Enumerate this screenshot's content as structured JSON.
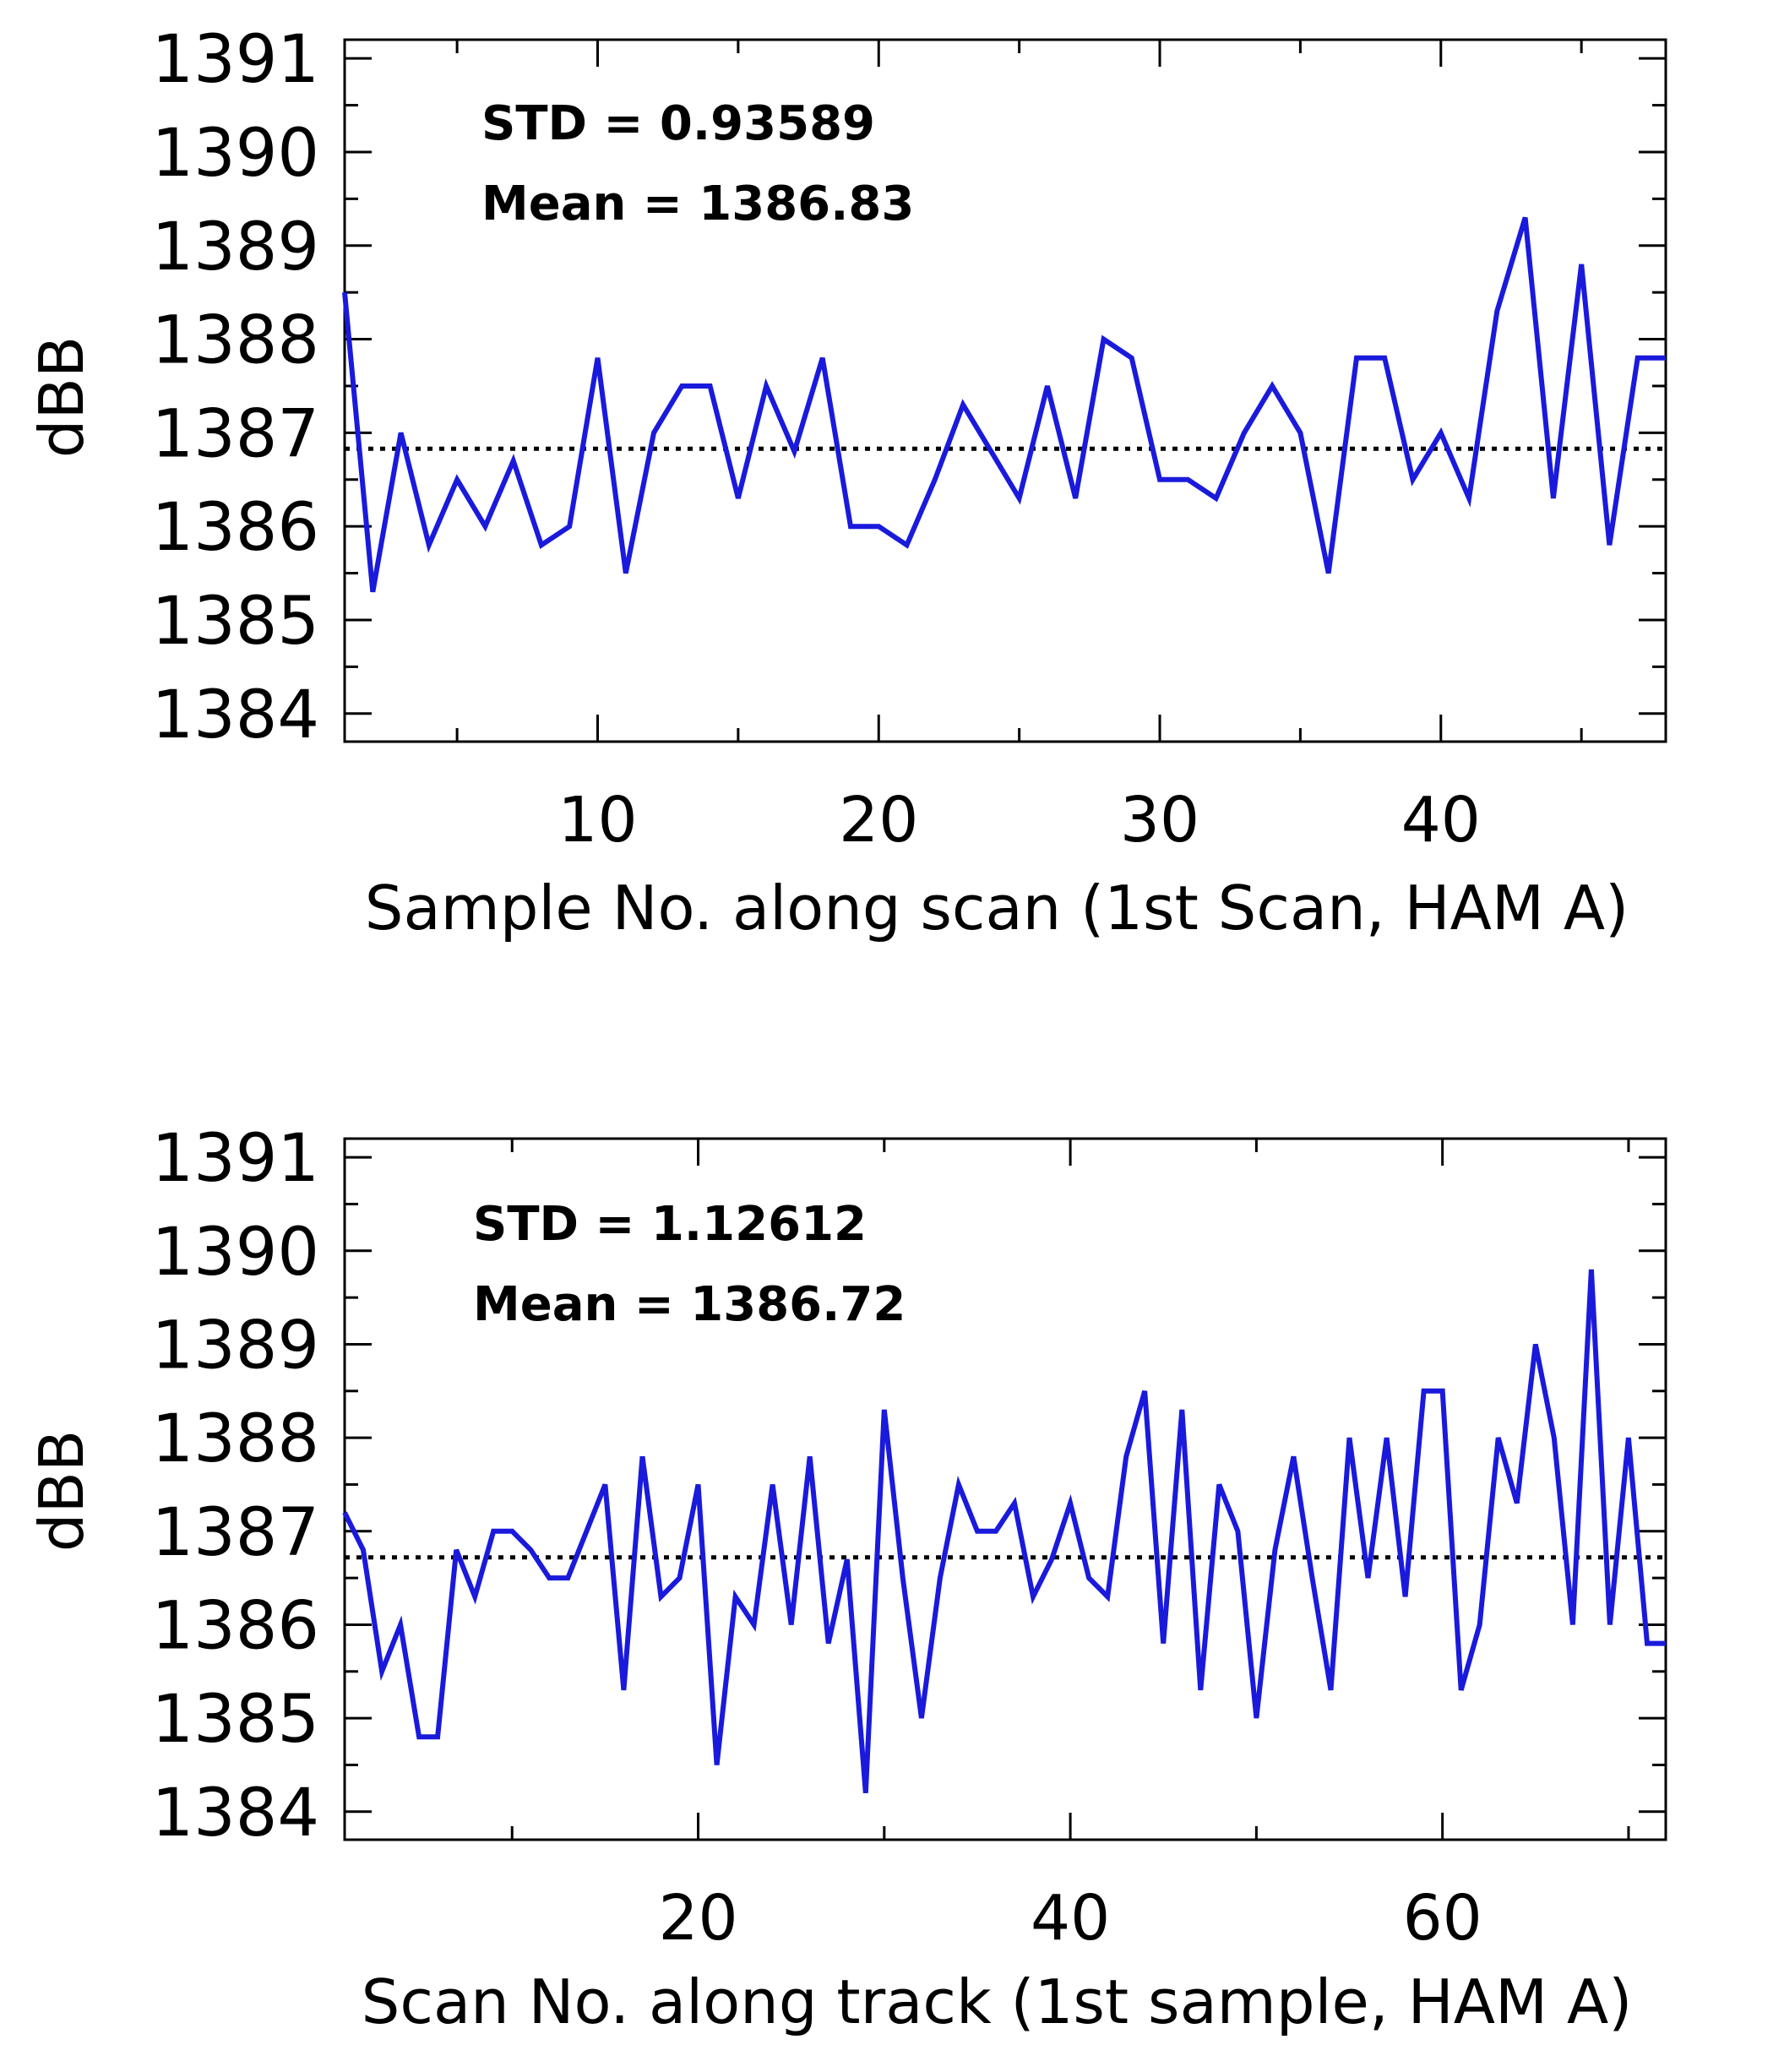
{
  "chart_data": [
    {
      "type": "line",
      "title": "",
      "xlabel": "Sample No. along scan (1st Scan, HAM A)",
      "ylabel": "dBB",
      "xlim": [
        1,
        48
      ],
      "ylim": [
        1383.7,
        1391.2
      ],
      "xticks": [
        10,
        20,
        30,
        40
      ],
      "yticks": [
        1384,
        1385,
        1386,
        1387,
        1388,
        1389,
        1390,
        1391
      ],
      "grid": false,
      "line_color": "#1a1adc",
      "mean_line_style": "dotted",
      "annotations": [
        {
          "text": "STD = 0.93589"
        },
        {
          "text": "Mean = 1386.83"
        }
      ],
      "mean": 1386.83,
      "series": [
        {
          "x": [
            1,
            2,
            3,
            4,
            5,
            6,
            7,
            8,
            9,
            10,
            11,
            12,
            13,
            14,
            15,
            16,
            17,
            18,
            19,
            20,
            21,
            22,
            23,
            24,
            25,
            26,
            27,
            28,
            29,
            30,
            31,
            32,
            33,
            34,
            35,
            36,
            37,
            38,
            39,
            40,
            41,
            42,
            43,
            44,
            45,
            46,
            47,
            48
          ],
          "values": [
            1388.5,
            1385.3,
            1387.0,
            1385.8,
            1386.5,
            1386.0,
            1386.7,
            1385.8,
            1386.0,
            1387.8,
            1385.5,
            1387.0,
            1387.5,
            1387.5,
            1386.3,
            1387.5,
            1386.8,
            1387.8,
            1386.0,
            1386.0,
            1385.8,
            1386.5,
            1387.3,
            1386.8,
            1386.3,
            1387.5,
            1386.3,
            1388.0,
            1387.8,
            1386.5,
            1386.5,
            1386.3,
            1387.0,
            1387.5,
            1387.0,
            1385.5,
            1387.8,
            1387.8,
            1386.5,
            1387.0,
            1386.3,
            1388.3,
            1389.3,
            1386.3,
            1388.8,
            1385.8,
            1387.8,
            1387.8
          ]
        }
      ]
    },
    {
      "type": "line",
      "title": "",
      "xlabel": "Scan No. along track (1st sample, HAM A)",
      "ylabel": "dBB",
      "xlim": [
        1,
        72
      ],
      "ylim": [
        1383.7,
        1391.2
      ],
      "xticks": [
        20,
        40,
        60
      ],
      "yticks": [
        1384,
        1385,
        1386,
        1387,
        1388,
        1389,
        1390,
        1391
      ],
      "grid": false,
      "line_color": "#1a1adc",
      "mean_line_style": "dotted",
      "annotations": [
        {
          "text": "STD = 1.12612"
        },
        {
          "text": "Mean = 1386.72"
        }
      ],
      "mean": 1386.72,
      "series": [
        {
          "x": [
            1,
            2,
            3,
            4,
            5,
            6,
            7,
            8,
            9,
            10,
            11,
            12,
            13,
            14,
            15,
            16,
            17,
            18,
            19,
            20,
            21,
            22,
            23,
            24,
            25,
            26,
            27,
            28,
            29,
            30,
            31,
            32,
            33,
            34,
            35,
            36,
            37,
            38,
            39,
            40,
            41,
            42,
            43,
            44,
            45,
            46,
            47,
            48,
            49,
            50,
            51,
            52,
            53,
            54,
            55,
            56,
            57,
            58,
            59,
            60,
            61,
            62,
            63,
            64,
            65,
            66,
            67,
            68,
            69,
            70,
            71,
            72
          ],
          "values": [
            1387.2,
            1386.8,
            1385.5,
            1386.0,
            1384.8,
            1384.8,
            1386.8,
            1386.3,
            1387.0,
            1387.0,
            1386.8,
            1386.5,
            1386.5,
            1387.0,
            1387.5,
            1385.3,
            1387.8,
            1386.3,
            1386.5,
            1387.5,
            1384.5,
            1386.3,
            1386.0,
            1387.5,
            1386.0,
            1387.8,
            1385.8,
            1386.7,
            1384.2,
            1388.3,
            1386.5,
            1385.0,
            1386.5,
            1387.5,
            1387.0,
            1387.0,
            1387.3,
            1386.3,
            1386.7,
            1387.3,
            1386.5,
            1386.3,
            1387.8,
            1388.5,
            1385.8,
            1388.3,
            1385.3,
            1387.5,
            1387.0,
            1385.0,
            1386.8,
            1387.8,
            1386.5,
            1385.3,
            1388.0,
            1386.5,
            1388.0,
            1386.3,
            1388.5,
            1388.5,
            1385.3,
            1386.0,
            1388.0,
            1387.3,
            1389.0,
            1388.0,
            1386.0,
            1389.8,
            1386.0,
            1388.0,
            1385.8,
            1385.8
          ]
        }
      ]
    }
  ]
}
